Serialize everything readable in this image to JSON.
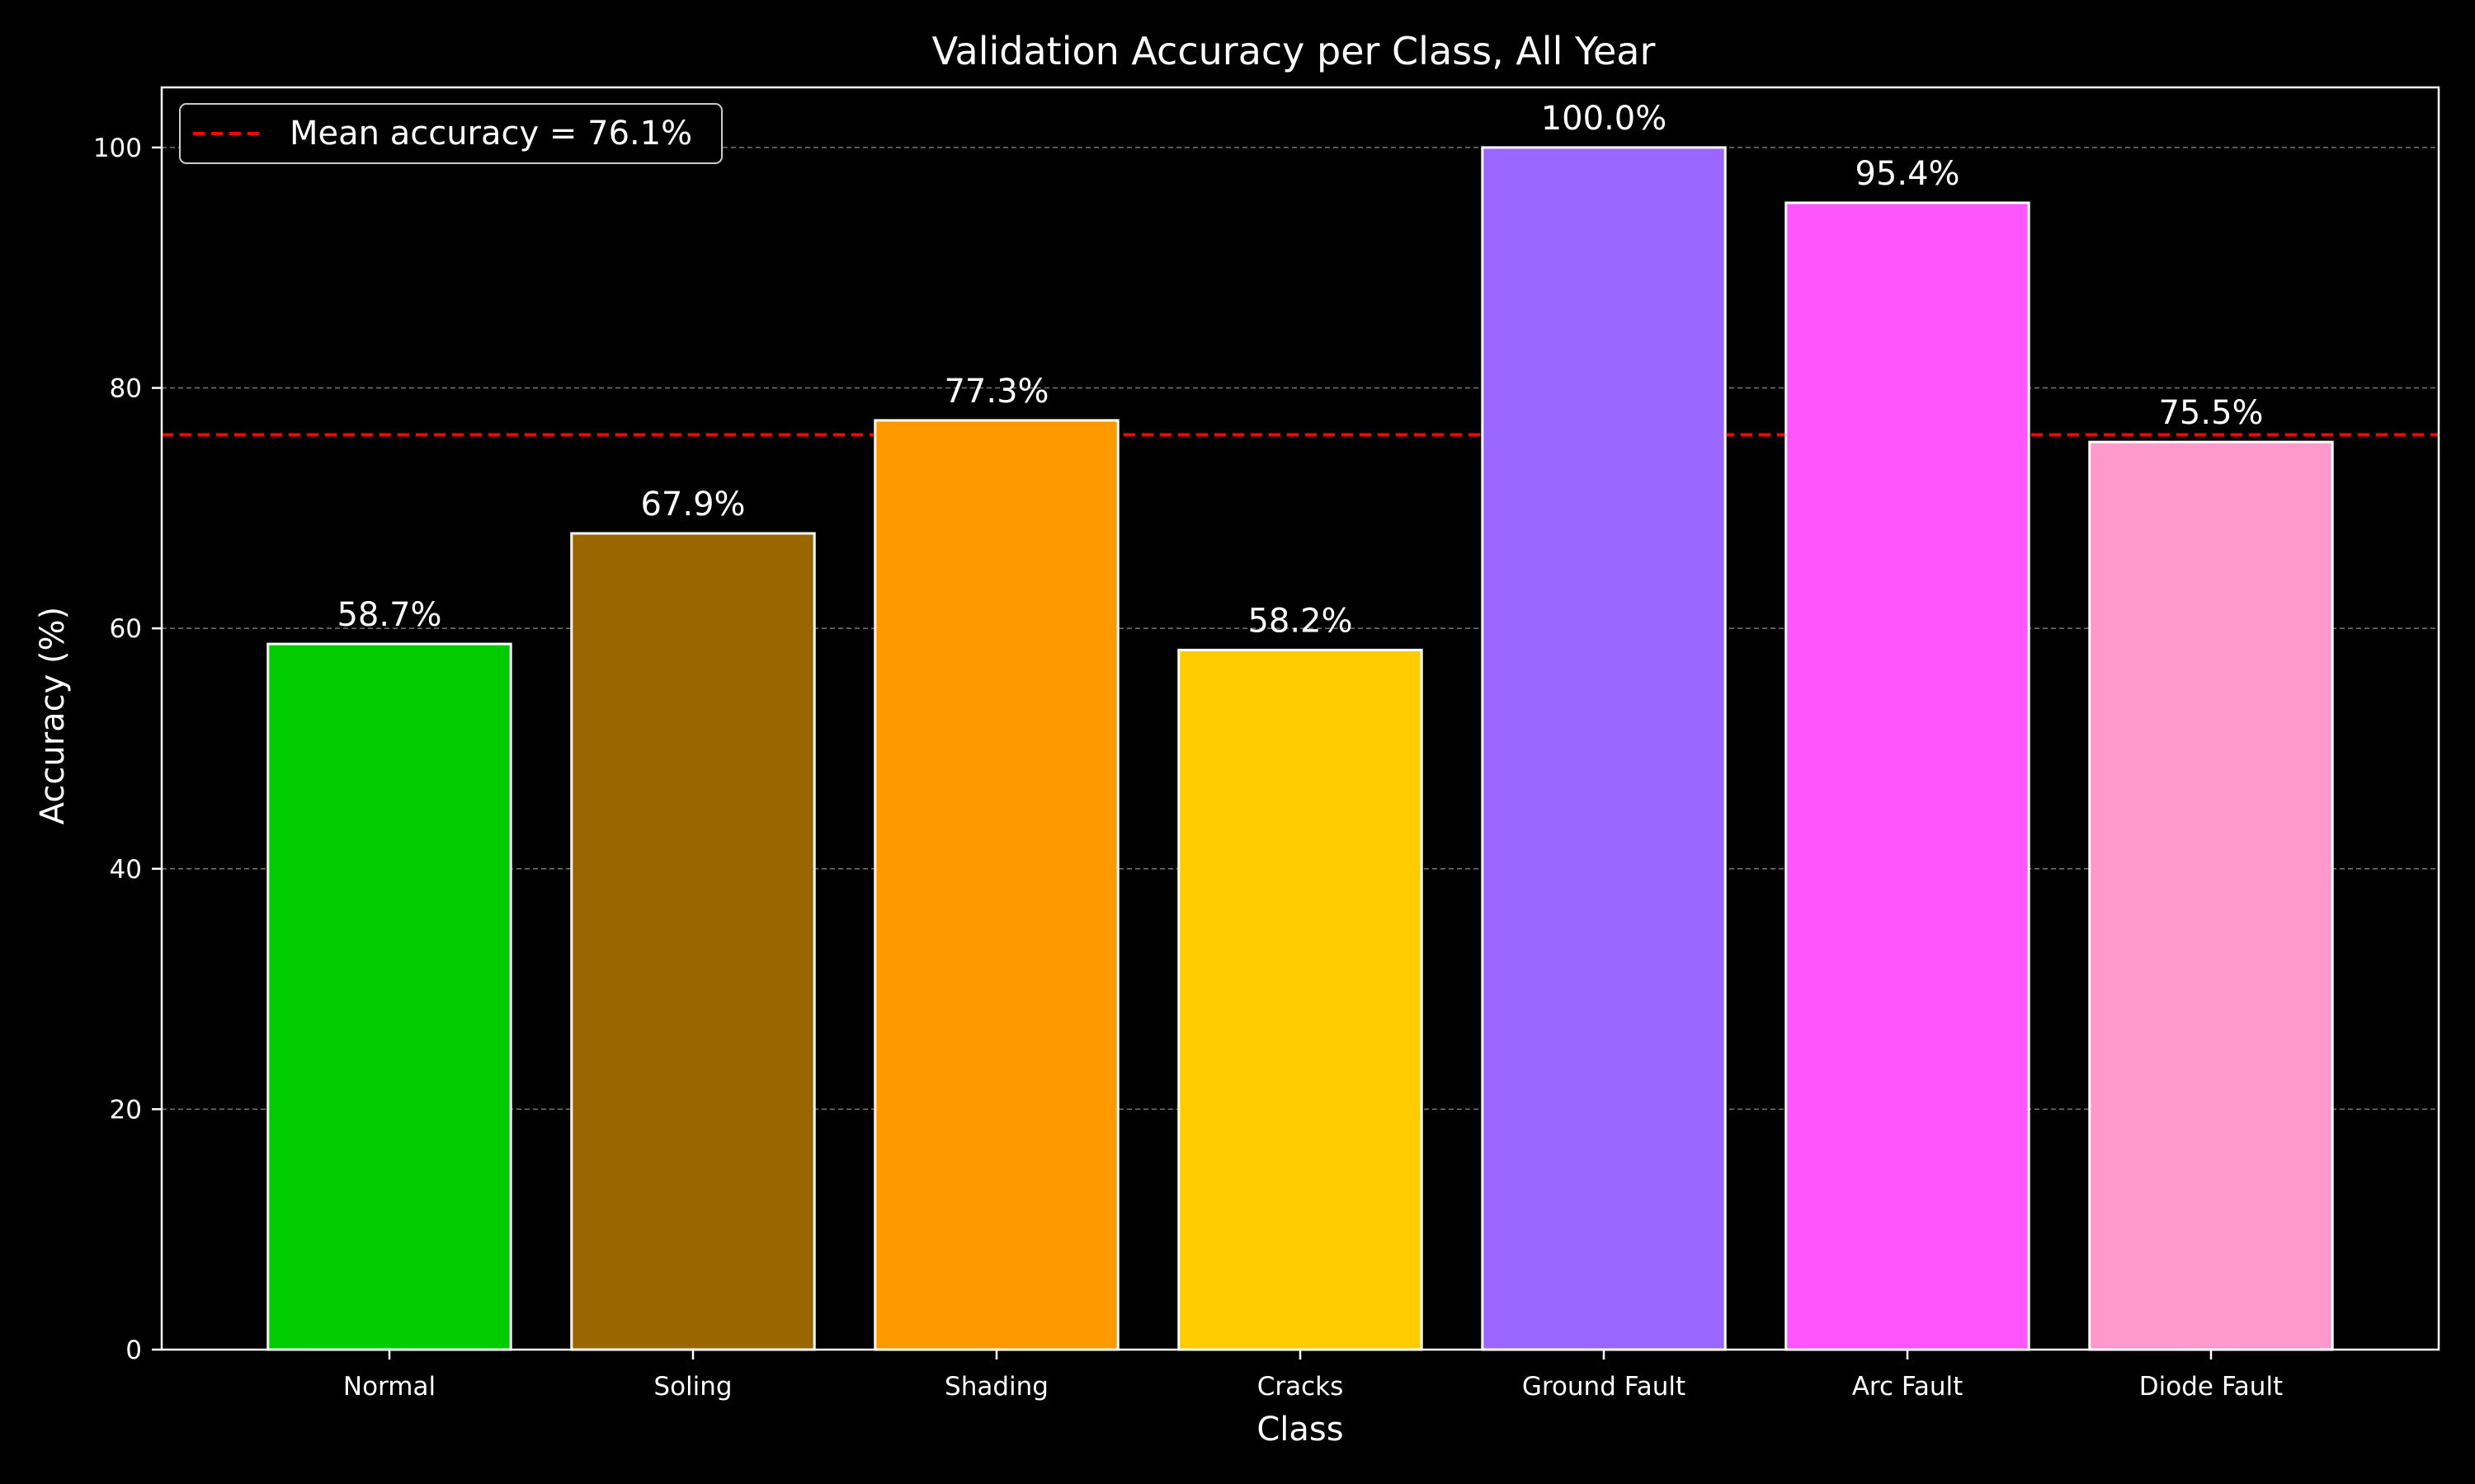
{
  "chart_data": {
    "type": "bar",
    "title": "Validation Accuracy per Class, All Year",
    "xlabel": "Class",
    "ylabel": "Accuracy (%)",
    "categories": [
      "Normal",
      "Soling",
      "Shading",
      "Cracks",
      "Ground Fault",
      "Arc Fault",
      "Diode Fault"
    ],
    "values": [
      58.7,
      67.9,
      77.3,
      58.2,
      100.0,
      95.4,
      75.5
    ],
    "value_labels": [
      "58.7%",
      "67.9%",
      "77.3%",
      "58.2%",
      "100.0%",
      "95.4%",
      "75.5%"
    ],
    "colors": [
      "#00cc00",
      "#996600",
      "#ff9900",
      "#ffcc00",
      "#9966ff",
      "#ff55ff",
      "#ff99cc"
    ],
    "bar_edge_color": "#ffffff",
    "ylim": [
      0,
      105
    ],
    "yticks": [
      0,
      20,
      40,
      60,
      80,
      100
    ],
    "grid": "y-dashed",
    "mean_line": {
      "value": 76.1,
      "label": "Mean accuracy = 76.1%",
      "color": "#ff0000",
      "style": "dashed"
    },
    "legend_position": "top-left",
    "background": "#000000"
  }
}
